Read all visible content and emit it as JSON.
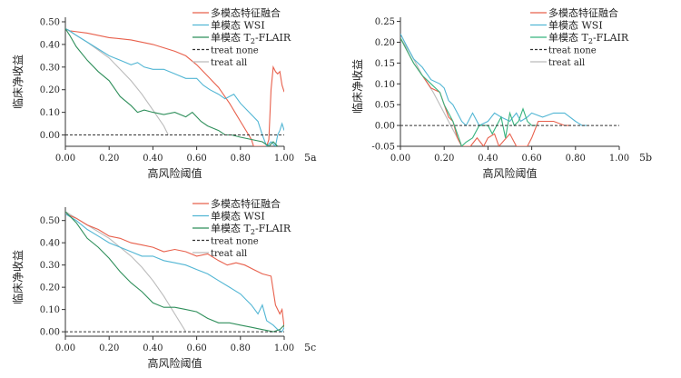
{
  "chart_data": [
    {
      "type": "line",
      "panel_label": "5a",
      "xlabel": "高风险阈值",
      "ylabel": "临床净收益",
      "xlim": [
        0,
        1
      ],
      "ylim": [
        -0.05,
        0.52
      ],
      "xticks": [
        "0.00",
        "0.20",
        "0.40",
        "0.60",
        "0.80",
        "1.00"
      ],
      "yticks": [
        "0.00",
        "0.10",
        "0.20",
        "0.30",
        "0.40",
        "0.50"
      ],
      "legend_position": "top-right",
      "series": [
        {
          "name": "多模态特征融合",
          "color": "#e8604c",
          "x": [
            0,
            0.02,
            0.1,
            0.2,
            0.3,
            0.4,
            0.5,
            0.55,
            0.6,
            0.65,
            0.7,
            0.75,
            0.8,
            0.85,
            0.86,
            0.92,
            0.93,
            0.94,
            0.95,
            0.96,
            0.97,
            0.98,
            0.99,
            1.0
          ],
          "y": [
            0.47,
            0.46,
            0.45,
            0.43,
            0.42,
            0.4,
            0.37,
            0.35,
            0.31,
            0.26,
            0.21,
            0.14,
            0.06,
            -0.02,
            -0.05,
            -0.05,
            -0.02,
            0.2,
            0.3,
            0.28,
            0.27,
            0.28,
            0.22,
            0.19
          ]
        },
        {
          "name": "单模态 WSI",
          "color": "#52b6d4",
          "x": [
            0,
            0.02,
            0.05,
            0.1,
            0.15,
            0.2,
            0.25,
            0.3,
            0.33,
            0.36,
            0.4,
            0.45,
            0.5,
            0.55,
            0.6,
            0.63,
            0.66,
            0.7,
            0.73,
            0.77,
            0.8,
            0.83,
            0.86,
            0.88,
            0.9,
            0.92,
            0.94,
            0.96,
            0.97,
            0.98,
            0.99,
            1.0
          ],
          "y": [
            0.47,
            0.46,
            0.44,
            0.41,
            0.38,
            0.35,
            0.33,
            0.31,
            0.32,
            0.3,
            0.29,
            0.29,
            0.27,
            0.25,
            0.25,
            0.22,
            0.2,
            0.18,
            0.16,
            0.18,
            0.14,
            0.11,
            0.08,
            0.06,
            0.0,
            -0.05,
            -0.03,
            -0.05,
            0.0,
            0.02,
            0.05,
            0.02
          ]
        },
        {
          "name": "单模态 T2-FLAIR",
          "color": "#2f8f5b",
          "x": [
            0,
            0.02,
            0.05,
            0.1,
            0.15,
            0.2,
            0.25,
            0.3,
            0.33,
            0.36,
            0.4,
            0.45,
            0.5,
            0.55,
            0.58,
            0.62,
            0.65,
            0.7,
            0.73,
            0.76,
            0.8,
            0.85,
            0.9,
            0.93,
            0.95,
            0.97
          ],
          "y": [
            0.47,
            0.44,
            0.39,
            0.33,
            0.28,
            0.24,
            0.17,
            0.13,
            0.1,
            0.11,
            0.1,
            0.09,
            0.1,
            0.08,
            0.1,
            0.06,
            0.04,
            0.02,
            0.0,
            0.0,
            -0.01,
            -0.02,
            -0.03,
            -0.05,
            -0.03,
            -0.05
          ]
        },
        {
          "name": "treat none",
          "color": "#333333",
          "dashed": true,
          "x": [
            0,
            1.0
          ],
          "y": [
            0,
            0
          ]
        },
        {
          "name": "treat all",
          "color": "#bbbbbb",
          "dashed": false,
          "x": [
            0,
            0.1,
            0.2,
            0.25,
            0.3,
            0.35,
            0.4,
            0.45,
            0.47
          ],
          "y": [
            0.47,
            0.41,
            0.34,
            0.29,
            0.24,
            0.18,
            0.11,
            0.04,
            0.0
          ]
        }
      ]
    },
    {
      "type": "line",
      "panel_label": "5b",
      "xlabel": "高风险阈值",
      "ylabel": "临床净收益",
      "xlim": [
        0,
        1
      ],
      "ylim": [
        -0.05,
        0.26
      ],
      "xticks": [
        "0.00",
        "0.20",
        "0.40",
        "0.60",
        "0.80",
        "1.00"
      ],
      "yticks": [
        "-0.05",
        "0.00",
        "0.05",
        "0.10",
        "0.15",
        "0.20",
        "0.25"
      ],
      "legend_position": "top-right",
      "series": [
        {
          "name": "多模态特征融合",
          "color": "#e8604c",
          "x": [
            0,
            0.03,
            0.06,
            0.1,
            0.14,
            0.18,
            0.2,
            0.22,
            0.24,
            0.26,
            0.28,
            0.3,
            0.32,
            0.35,
            0.38,
            0.4,
            0.43,
            0.45,
            0.5,
            0.53,
            0.55,
            0.58,
            0.6,
            0.63,
            0.66,
            0.7,
            0.75,
            0.78
          ],
          "y": [
            0.21,
            0.18,
            0.15,
            0.12,
            0.09,
            0.08,
            0.05,
            0.02,
            0.01,
            -0.03,
            -0.05,
            -0.05,
            -0.05,
            -0.03,
            -0.05,
            -0.03,
            -0.02,
            -0.05,
            -0.02,
            -0.05,
            -0.05,
            -0.05,
            -0.03,
            0.01,
            0.01,
            0.01,
            0.0,
            0.0
          ]
        },
        {
          "name": "单模态 WSI",
          "color": "#52b6d4",
          "x": [
            0,
            0.03,
            0.06,
            0.1,
            0.14,
            0.18,
            0.2,
            0.22,
            0.24,
            0.26,
            0.28,
            0.3,
            0.33,
            0.36,
            0.4,
            0.43,
            0.46,
            0.5,
            0.53,
            0.55,
            0.58,
            0.6,
            0.65,
            0.7,
            0.75,
            0.8,
            0.83,
            0.85
          ],
          "y": [
            0.22,
            0.19,
            0.16,
            0.14,
            0.11,
            0.1,
            0.09,
            0.06,
            0.05,
            0.03,
            0.01,
            0.0,
            0.03,
            0.0,
            0.01,
            0.03,
            0.02,
            0.01,
            0.03,
            0.01,
            0.02,
            0.03,
            0.02,
            0.03,
            0.03,
            0.01,
            0.0,
            0.0
          ]
        },
        {
          "name": "单模态 T2-FLAIR",
          "color": "#36b37e",
          "x": [
            0,
            0.03,
            0.06,
            0.1,
            0.14,
            0.18,
            0.2,
            0.22,
            0.24,
            0.26,
            0.28,
            0.3,
            0.33,
            0.36,
            0.4,
            0.42,
            0.44,
            0.46,
            0.48,
            0.5,
            0.52,
            0.54,
            0.56,
            0.58,
            0.6,
            0.62
          ],
          "y": [
            0.21,
            0.18,
            0.15,
            0.12,
            0.1,
            0.08,
            0.05,
            0.03,
            0.01,
            -0.02,
            -0.05,
            -0.04,
            -0.03,
            0.0,
            0.0,
            -0.02,
            0.0,
            0.02,
            -0.03,
            0.03,
            0.0,
            0.01,
            0.04,
            0.01,
            0.0,
            0.0
          ]
        },
        {
          "name": "treat none",
          "color": "#333333",
          "dashed": true,
          "x": [
            0,
            1.0
          ],
          "y": [
            0,
            0
          ]
        },
        {
          "name": "treat all",
          "color": "#bbbbbb",
          "dashed": false,
          "x": [
            0,
            0.05,
            0.1,
            0.15,
            0.2,
            0.23,
            0.26
          ],
          "y": [
            0.21,
            0.17,
            0.12,
            0.08,
            0.03,
            0.0,
            -0.03
          ]
        }
      ]
    },
    {
      "type": "line",
      "panel_label": "5c",
      "xlabel": "高风险阈值",
      "ylabel": "临床净收益",
      "xlim": [
        0,
        1
      ],
      "ylim": [
        -0.02,
        0.56
      ],
      "xticks": [
        "0.00",
        "0.20",
        "0.40",
        "0.60",
        "0.80",
        "1.00"
      ],
      "yticks": [
        "0.00",
        "0.10",
        "0.20",
        "0.30",
        "0.40",
        "0.50"
      ],
      "legend_position": "top-right",
      "series": [
        {
          "name": "多模态特征融合",
          "color": "#e8604c",
          "x": [
            0,
            0.05,
            0.1,
            0.15,
            0.2,
            0.25,
            0.3,
            0.35,
            0.4,
            0.45,
            0.5,
            0.55,
            0.6,
            0.65,
            0.7,
            0.74,
            0.78,
            0.82,
            0.86,
            0.9,
            0.94,
            0.96,
            0.98,
            0.99,
            1.0
          ],
          "y": [
            0.53,
            0.51,
            0.48,
            0.46,
            0.43,
            0.42,
            0.4,
            0.39,
            0.38,
            0.36,
            0.37,
            0.36,
            0.34,
            0.35,
            0.32,
            0.3,
            0.31,
            0.3,
            0.28,
            0.26,
            0.25,
            0.12,
            0.08,
            0.1,
            0.02
          ]
        },
        {
          "name": "单模态 WSI",
          "color": "#52b6d4",
          "x": [
            0,
            0.05,
            0.1,
            0.15,
            0.2,
            0.25,
            0.3,
            0.35,
            0.4,
            0.45,
            0.5,
            0.55,
            0.6,
            0.65,
            0.7,
            0.75,
            0.8,
            0.85,
            0.88,
            0.9,
            0.92,
            0.95,
            0.97,
            0.99,
            1.0
          ],
          "y": [
            0.53,
            0.5,
            0.46,
            0.43,
            0.4,
            0.38,
            0.36,
            0.34,
            0.34,
            0.32,
            0.31,
            0.3,
            0.28,
            0.26,
            0.23,
            0.2,
            0.17,
            0.12,
            0.08,
            0.12,
            0.05,
            0.03,
            0.01,
            0.0,
            0.02
          ]
        },
        {
          "name": "单模态 T2-FLAIR",
          "color": "#2f8f5b",
          "x": [
            0,
            0.05,
            0.1,
            0.15,
            0.2,
            0.25,
            0.3,
            0.35,
            0.4,
            0.45,
            0.5,
            0.55,
            0.6,
            0.65,
            0.7,
            0.75,
            0.8,
            0.85,
            0.9,
            0.95,
            0.98,
            1.0
          ],
          "y": [
            0.54,
            0.49,
            0.42,
            0.38,
            0.33,
            0.27,
            0.22,
            0.18,
            0.13,
            0.11,
            0.11,
            0.1,
            0.09,
            0.06,
            0.04,
            0.04,
            0.03,
            0.02,
            0.01,
            0.0,
            0.01,
            0.03
          ]
        },
        {
          "name": "treat none",
          "color": "#333333",
          "dashed": true,
          "x": [
            0,
            1.0
          ],
          "y": [
            0,
            0
          ]
        },
        {
          "name": "treat all",
          "color": "#bbbbbb",
          "dashed": false,
          "x": [
            0,
            0.1,
            0.2,
            0.3,
            0.35,
            0.4,
            0.45,
            0.5,
            0.55
          ],
          "y": [
            0.54,
            0.48,
            0.42,
            0.34,
            0.29,
            0.23,
            0.16,
            0.08,
            0.0
          ]
        }
      ]
    }
  ]
}
